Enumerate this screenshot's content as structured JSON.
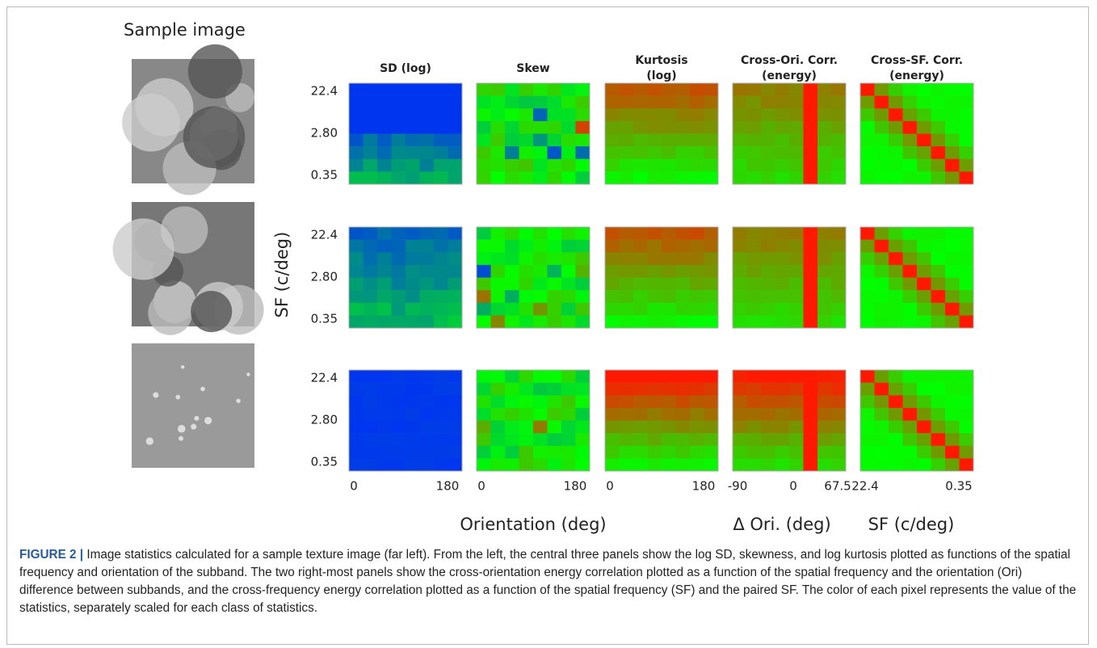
{
  "sample_label": "Sample image",
  "panels": [
    {
      "title_lines": [
        "SD (log)"
      ],
      "x_ticks": [
        "0",
        "180"
      ]
    },
    {
      "title_lines": [
        "Skew"
      ],
      "x_ticks": [
        "0",
        "180"
      ]
    },
    {
      "title_lines": [
        "Kurtosis",
        "(log)"
      ],
      "x_ticks": [
        "0",
        "180"
      ]
    },
    {
      "title_lines": [
        "Cross-Ori. Corr.",
        "(energy)"
      ],
      "x_ticks": [
        "-90",
        "0",
        "67.5"
      ]
    },
    {
      "title_lines": [
        "Cross-SF. Corr.",
        "(energy)"
      ],
      "x_ticks": [
        "22.4",
        "0.35"
      ]
    }
  ],
  "y_axis": {
    "label": "SF (c/deg)",
    "ticks": [
      "22.4",
      "2.80",
      "0.35"
    ]
  },
  "x_labels": [
    "Orientation (deg)",
    "Δ Ori. (deg)",
    "SF (c/deg)"
  ],
  "caption": {
    "label": "FIGURE 2 |",
    "text": "Image statistics calculated for a sample texture image (far left). From the left, the central three panels show the log SD, skewness, and log kurtosis plotted as functions of the spatial frequency and orientation of the subband. The two right-most panels show the cross-orientation energy correlation plotted as a function of the spatial frequency and the orientation (Ori) difference between subbands, and the cross-frequency energy correlation plotted as a function of the spatial frequency (SF) and the paired SF. The color of each pixel represents the value of the statistics, separately scaled for each class of statistics."
  }
}
